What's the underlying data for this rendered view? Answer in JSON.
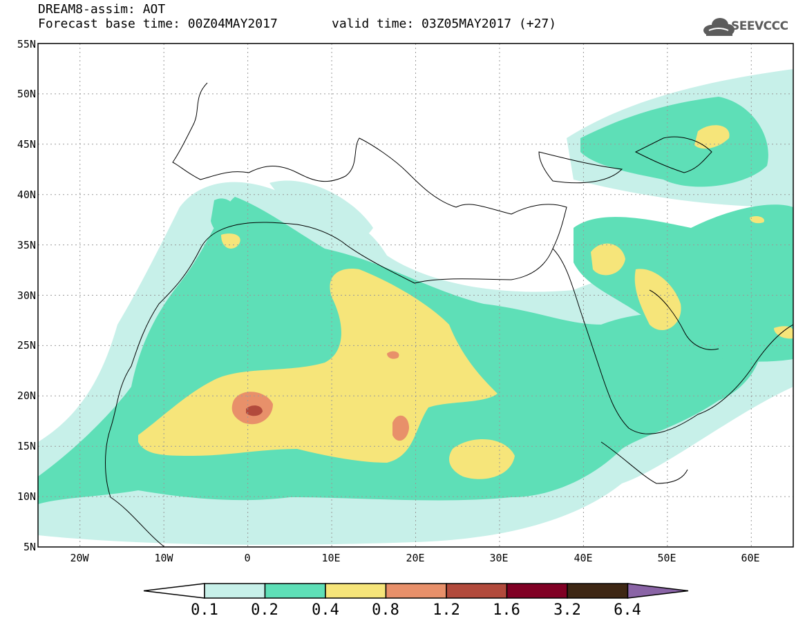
{
  "header": {
    "line1": "DREAM8-assim: AOT",
    "line2": "Forecast base time: 00Z04MAY2017",
    "valid": "valid time: 03Z05MAY2017 (+27)"
  },
  "logo": {
    "text": "SEEVCCC",
    "icon": "cloud-icon"
  },
  "map": {
    "lon_range": [
      -25,
      65
    ],
    "lat_range": [
      5,
      55
    ],
    "lat_labels": [
      "55N",
      "50N",
      "45N",
      "40N",
      "35N",
      "30N",
      "25N",
      "20N",
      "15N",
      "10N",
      "5N"
    ],
    "lon_labels": [
      "20W",
      "10W",
      "0",
      "10E",
      "20E",
      "30E",
      "40E",
      "50E",
      "60E"
    ]
  },
  "colorbar": {
    "levels": [
      "0.1",
      "0.2",
      "0.4",
      "0.8",
      "1.2",
      "1.6",
      "3.2",
      "6.4"
    ],
    "colors": [
      "#ffffff",
      "#c7f0e9",
      "#5edfb7",
      "#f6e57a",
      "#e8906a",
      "#b24a3c",
      "#800024",
      "#3e2714",
      "#8a64a6"
    ]
  }
}
